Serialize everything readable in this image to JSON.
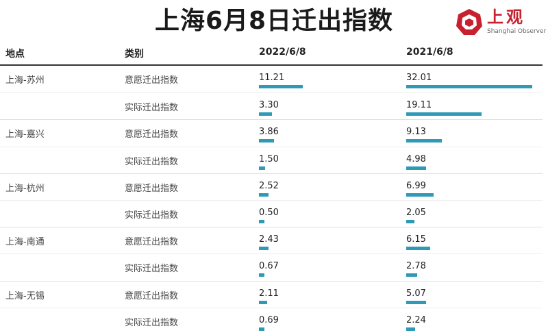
{
  "title": "上海6月8日迁出指数",
  "logo": {
    "cn": "上观",
    "en": "Shanghai Observer",
    "color": "#c7212f"
  },
  "headers": {
    "place": "地点",
    "category": "类别",
    "col2022": "2022/6/8",
    "col2021": "2021/6/8"
  },
  "bar_color": "#2e9ab5",
  "chart_data": {
    "type": "bar",
    "title": "上海6月8日迁出指数",
    "series": [
      {
        "name": "2022/6/8",
        "values": [
          11.21,
          3.3,
          3.86,
          1.5,
          2.52,
          0.5,
          2.43,
          0.67,
          2.11,
          0.69
        ]
      },
      {
        "name": "2021/6/8",
        "values": [
          32.01,
          19.11,
          9.13,
          4.98,
          6.99,
          2.05,
          6.15,
          2.78,
          5.07,
          2.24
        ]
      }
    ],
    "rows": [
      {
        "place": "上海-苏州",
        "category": "意愿迁出指数",
        "v2022": "11.21",
        "v2021": "32.01"
      },
      {
        "place": "",
        "category": "实际迁出指数",
        "v2022": "3.30",
        "v2021": "19.11"
      },
      {
        "place": "上海-嘉兴",
        "category": "意愿迁出指数",
        "v2022": "3.86",
        "v2021": "9.13"
      },
      {
        "place": "",
        "category": "实际迁出指数",
        "v2022": "1.50",
        "v2021": "4.98"
      },
      {
        "place": "上海-杭州",
        "category": "意愿迁出指数",
        "v2022": "2.52",
        "v2021": "6.99"
      },
      {
        "place": "",
        "category": "实际迁出指数",
        "v2022": "0.50",
        "v2021": "2.05"
      },
      {
        "place": "上海-南通",
        "category": "意愿迁出指数",
        "v2022": "2.43",
        "v2021": "6.15"
      },
      {
        "place": "",
        "category": "实际迁出指数",
        "v2022": "0.67",
        "v2021": "2.78"
      },
      {
        "place": "上海-无锡",
        "category": "意愿迁出指数",
        "v2022": "2.11",
        "v2021": "5.07"
      },
      {
        "place": "",
        "category": "实际迁出指数",
        "v2022": "0.69",
        "v2021": "2.24"
      }
    ]
  }
}
